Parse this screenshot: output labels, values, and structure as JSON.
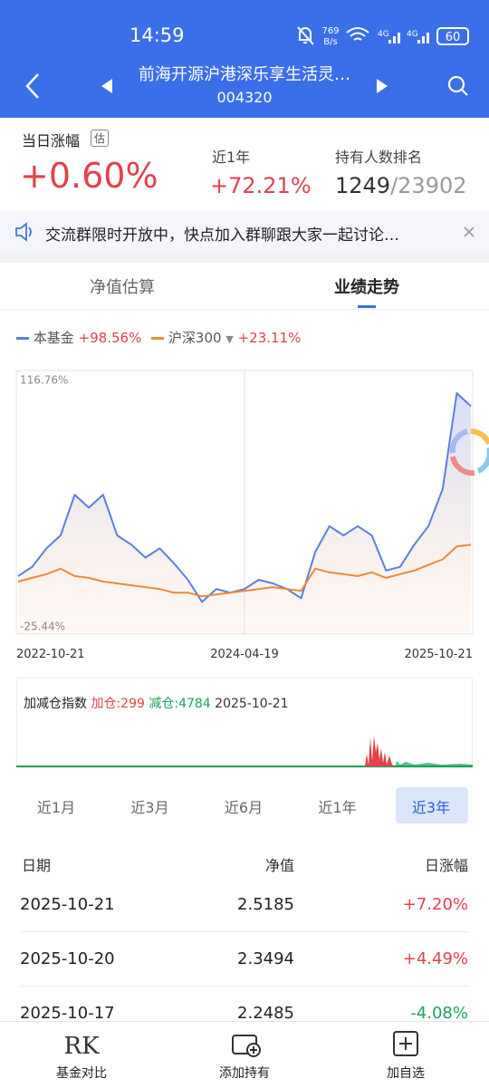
{
  "status_bar": {
    "time": "14:59",
    "net_speed": "769",
    "net_unit": "B/s",
    "sig1": "4G",
    "sig2": "4G",
    "battery": "60"
  },
  "nav": {
    "title": "前海开源沪港深乐享生活灵…",
    "code": "004320"
  },
  "summary": {
    "daily_label": "当日涨幅",
    "daily_badge": "估",
    "daily_value": "+0.60%",
    "year_label": "近1年",
    "year_value": "+72.21%",
    "rank_label": "持有人数排名",
    "rank_value": "1249",
    "rank_total": "/23902"
  },
  "notice": {
    "text": "交流群限时开放中，快点加入群聊跟大家一起讨论…"
  },
  "tabs": [
    "净值估算",
    "业绩走势"
  ],
  "legend": {
    "fund_name": "本基金",
    "fund_change": "+98.56%",
    "index_name": "沪深300",
    "index_change": "+23.11%"
  },
  "chart_data": {
    "type": "line",
    "categories": [
      "2022-10-21",
      null,
      null,
      null,
      null,
      null,
      null,
      null,
      null,
      null,
      null,
      null,
      null,
      null,
      null,
      null,
      "2024-04-19",
      null,
      null,
      null,
      null,
      null,
      null,
      null,
      null,
      null,
      null,
      null,
      null,
      null,
      null,
      null,
      "2025-10-21"
    ],
    "series": [
      {
        "name": "本基金",
        "color": "#5a7ee0",
        "values": [
          6,
          11,
          21,
          28,
          50,
          43,
          50,
          28,
          23,
          16,
          21,
          13,
          4,
          -8,
          -1,
          -3,
          -1,
          4,
          2,
          -1,
          -6,
          19,
          33,
          28,
          33,
          28,
          9,
          11,
          23,
          33,
          53,
          105,
          98
        ]
      },
      {
        "name": "沪深300",
        "color": "#f0883a",
        "values": [
          3,
          5,
          7,
          10,
          6,
          5,
          3,
          2,
          1,
          0,
          -1,
          -3,
          -3,
          -5,
          -4,
          -3,
          -2,
          -1,
          0,
          -1,
          -2,
          10,
          8,
          7,
          6,
          8,
          5,
          7,
          9,
          12,
          15,
          22,
          23
        ]
      }
    ],
    "ylim": [
      -25.44,
      116.76
    ],
    "yticks": [
      {
        "value": -25.44,
        "label": "-25.44%"
      },
      {
        "value": 116.76,
        "label": "116.76%"
      }
    ]
  },
  "position_index": {
    "title": "加减仓指数",
    "add_label": "加仓:",
    "add_value": "299",
    "cut_label": "减仓:",
    "cut_value": "4784",
    "date": "2025-10-21"
  },
  "periods": [
    "近1月",
    "近3月",
    "近6月",
    "近1年",
    "近3年"
  ],
  "table": {
    "header": [
      "日期",
      "净值",
      "日涨幅"
    ],
    "rows": [
      [
        "2025-10-21",
        "2.5185",
        "+7.20%"
      ],
      [
        "2025-10-20",
        "2.3494",
        "+4.49%"
      ],
      [
        "2025-10-17",
        "2.2485",
        "-4.08%"
      ]
    ]
  },
  "bottom_bar": [
    "基金对比",
    "添加持有",
    "加自选"
  ]
}
